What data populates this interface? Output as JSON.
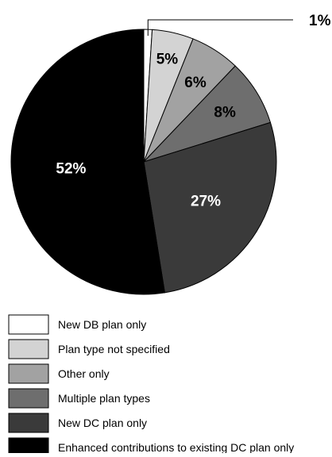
{
  "chart_data": {
    "type": "pie",
    "start_angle_deg": 0,
    "direction": "clockwise",
    "slices": [
      {
        "label": "New DB plan only",
        "value": 1,
        "display": "1%",
        "color": "#ffffff",
        "label_color": "#000000",
        "callout": true
      },
      {
        "label": "Plan type not specified",
        "value": 5,
        "display": "5%",
        "color": "#d3d3d3",
        "label_color": "#000000"
      },
      {
        "label": "Other only",
        "value": 6,
        "display": "6%",
        "color": "#a2a2a2",
        "label_color": "#000000"
      },
      {
        "label": "Multiple plan types",
        "value": 8,
        "display": "8%",
        "color": "#6e6e6e",
        "label_color": "#000000"
      },
      {
        "label": "New DC plan only",
        "value": 27,
        "display": "27%",
        "color": "#3a3a3a",
        "label_color": "#ffffff"
      },
      {
        "label": "Enhanced contributions to existing DC plan only",
        "value": 52,
        "display": "52%",
        "color": "#000000",
        "label_color": "#ffffff"
      }
    ],
    "legend_position": "bottom-left"
  }
}
